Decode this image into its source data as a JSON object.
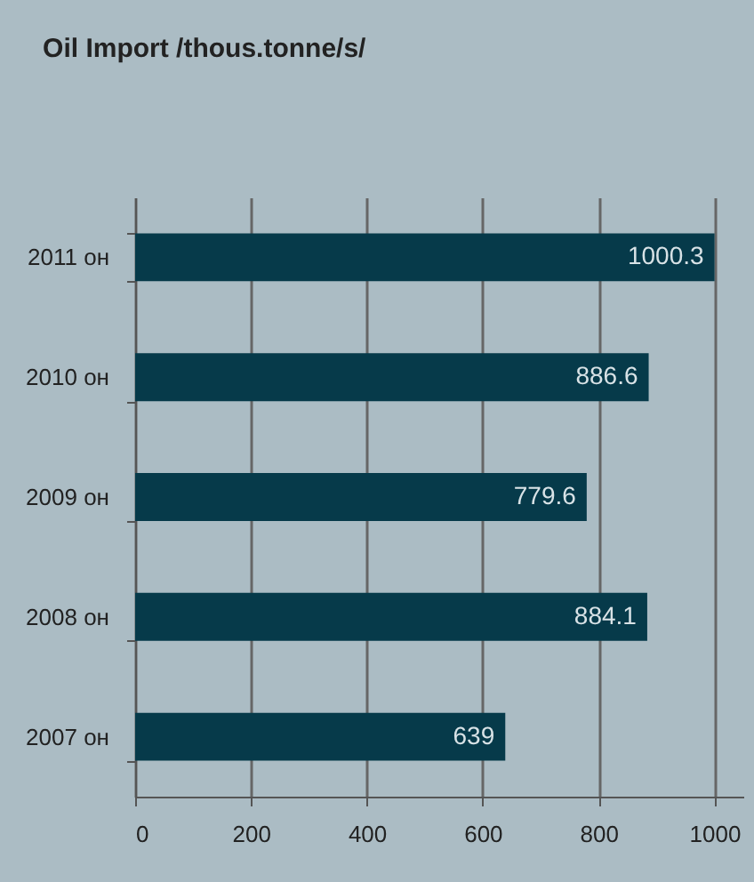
{
  "chart_data": {
    "type": "bar",
    "orientation": "horizontal",
    "title": "Oil Import /thous.tonne/s/",
    "categories": [
      "2011 он",
      "2010 он",
      "2009 он",
      "2008 он",
      "2007 он"
    ],
    "values": [
      1000.3,
      886.6,
      779.6,
      884.1,
      639
    ],
    "color": "#063a4a",
    "xlim": [
      0,
      1050
    ],
    "xticks": [
      0,
      200,
      400,
      600,
      800,
      1000
    ],
    "grid": "x",
    "data_labels": true
  }
}
